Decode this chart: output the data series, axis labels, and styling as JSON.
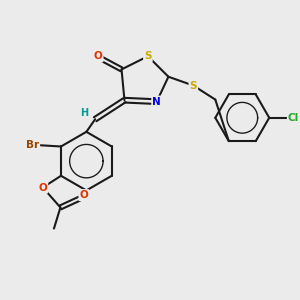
{
  "bg_color": "#ebebeb",
  "bond_color": "#1a1a1a",
  "bond_lw": 1.5,
  "atom_colors": {
    "S": "#ccaa00",
    "N": "#0000dd",
    "O": "#dd3300",
    "Br": "#994400",
    "Cl": "#22aa22",
    "H": "#009999"
  },
  "font_size": 7.5
}
